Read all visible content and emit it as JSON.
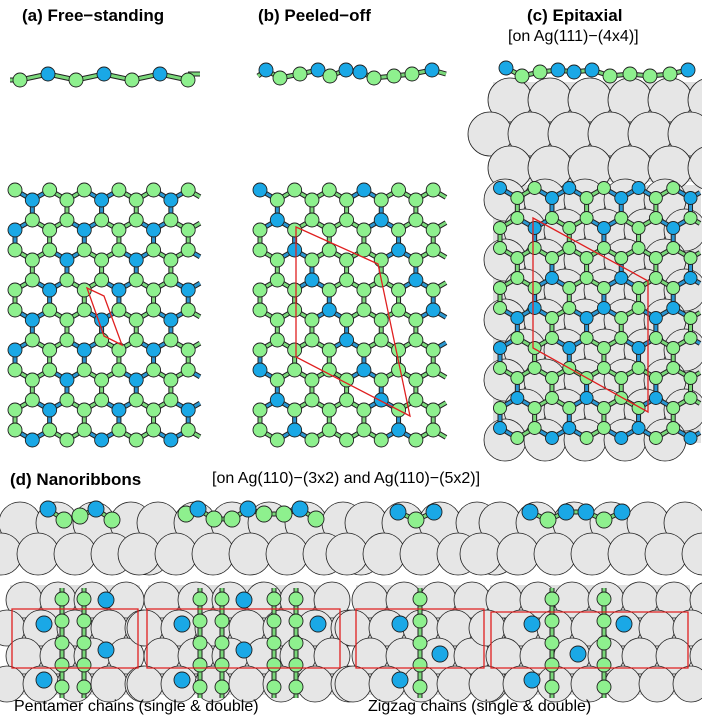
{
  "panels": {
    "a": {
      "label": "(a) Free−standing"
    },
    "b": {
      "label": "(b) Peeled−off"
    },
    "c": {
      "label": "(c) Epitaxial",
      "substrate": "[on Ag(111)−(4x4)]"
    },
    "d": {
      "label": "(d) Nanoribbons",
      "substrate": "[on Ag(110)−(3x2) and Ag(110)−(5x2)]"
    }
  },
  "captions": {
    "pentamer": "Pentamer chains (single & double)",
    "zigzag": "Zigzag chains (single & double)"
  },
  "colors": {
    "atom_green": "#8ef08e",
    "atom_blue": "#1aa8e6",
    "bond_green": "#7ad87a",
    "bond_blue": "#2a96d0",
    "substrate_atom": "#e6e6e6",
    "substrate_bg": "#e0e0e0",
    "unit_cell": "#e02020",
    "outline": "#202020"
  }
}
